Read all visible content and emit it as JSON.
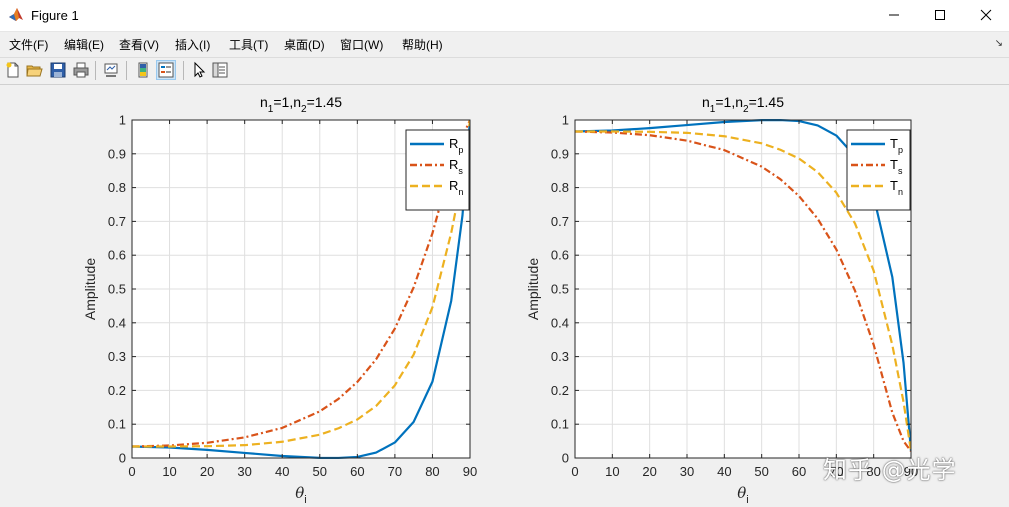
{
  "window": {
    "title": "Figure 1",
    "icon": "matlab-icon"
  },
  "menu": [
    {
      "label": "文件(F)"
    },
    {
      "label": "编辑(E)"
    },
    {
      "label": "查看(V)"
    },
    {
      "label": "插入(I)"
    },
    {
      "label": "工具(T)"
    },
    {
      "label": "桌面(D)"
    },
    {
      "label": "窗口(W)"
    },
    {
      "label": "帮助(H)"
    }
  ],
  "toolbar": [
    "new-figure-icon",
    "open-file-icon",
    "save-icon",
    "print-icon",
    "link-plot-icon",
    "colorbar-icon",
    "legend-icon",
    "pointer-icon",
    "property-editor-icon"
  ],
  "watermark": "知乎 @光学",
  "colors": {
    "series1": "#0072BD",
    "series2": "#D95319",
    "series3": "#EDB120"
  },
  "chart_data": [
    {
      "type": "line",
      "title_main": "n",
      "title_sub1": "1",
      "title_mid": "=1,n",
      "title_sub2": "2",
      "title_tail": "=1.45",
      "xlabel": "θ",
      "xlabel_sub": "i",
      "ylabel": "Amplitude",
      "xlim": [
        0,
        90
      ],
      "ylim": [
        0,
        1
      ],
      "xticks": [
        "0",
        "10",
        "20",
        "30",
        "40",
        "50",
        "60",
        "70",
        "80",
        "90"
      ],
      "yticks": [
        "0",
        "0.1",
        "0.2",
        "0.3",
        "0.4",
        "0.5",
        "0.6",
        "0.7",
        "0.8",
        "0.9",
        "1"
      ],
      "grid": true,
      "legend_position": "top-right",
      "x": [
        0,
        10,
        20,
        30,
        40,
        50,
        55,
        60,
        65,
        70,
        75,
        80,
        85,
        88,
        90
      ],
      "series": [
        {
          "name": "R",
          "sub": "p",
          "style": "solid",
          "color": "#0072BD",
          "values": [
            0.034,
            0.031,
            0.024,
            0.015,
            0.006,
            0.0003,
            0.0002,
            0.003,
            0.016,
            0.046,
            0.107,
            0.226,
            0.465,
            0.718,
            1.0
          ]
        },
        {
          "name": "R",
          "sub": "s",
          "style": "dashdot",
          "color": "#D95319",
          "values": [
            0.034,
            0.037,
            0.045,
            0.061,
            0.089,
            0.138,
            0.175,
            0.225,
            0.292,
            0.383,
            0.505,
            0.665,
            0.866,
            0.95,
            1.0
          ]
        },
        {
          "name": "R",
          "sub": "n",
          "style": "dashed",
          "color": "#EDB120",
          "values": [
            0.034,
            0.034,
            0.035,
            0.038,
            0.048,
            0.069,
            0.088,
            0.114,
            0.154,
            0.215,
            0.306,
            0.446,
            0.666,
            0.834,
            1.0
          ]
        }
      ]
    },
    {
      "type": "line",
      "title_main": "n",
      "title_sub1": "1",
      "title_mid": "=1,n",
      "title_sub2": "2",
      "title_tail": "=1.45",
      "xlabel": "θ",
      "xlabel_sub": "i",
      "ylabel": "Amplitude",
      "xlim": [
        0,
        90
      ],
      "ylim": [
        0,
        1
      ],
      "xticks": [
        "0",
        "10",
        "20",
        "30",
        "40",
        "50",
        "60",
        "70",
        "80",
        "90"
      ],
      "yticks": [
        "0",
        "0.1",
        "0.2",
        "0.3",
        "0.4",
        "0.5",
        "0.6",
        "0.7",
        "0.8",
        "0.9",
        "1"
      ],
      "grid": true,
      "legend_position": "top-right",
      "x": [
        0,
        10,
        20,
        30,
        40,
        50,
        55,
        60,
        65,
        70,
        75,
        80,
        85,
        88,
        90
      ],
      "series": [
        {
          "name": "T",
          "sub": "p",
          "style": "solid",
          "color": "#0072BD",
          "values": [
            0.966,
            0.969,
            0.976,
            0.985,
            0.994,
            0.9997,
            0.9998,
            0.997,
            0.984,
            0.954,
            0.893,
            0.774,
            0.535,
            0.282,
            0.02
          ]
        },
        {
          "name": "T",
          "sub": "s",
          "style": "dashdot",
          "color": "#D95319",
          "values": [
            0.966,
            0.963,
            0.955,
            0.939,
            0.911,
            0.862,
            0.825,
            0.775,
            0.708,
            0.617,
            0.495,
            0.335,
            0.134,
            0.05,
            0.02
          ]
        },
        {
          "name": "T",
          "sub": "n",
          "style": "dashed",
          "color": "#EDB120",
          "values": [
            0.966,
            0.966,
            0.965,
            0.962,
            0.952,
            0.931,
            0.912,
            0.886,
            0.846,
            0.785,
            0.694,
            0.554,
            0.334,
            0.166,
            0.02
          ]
        }
      ]
    }
  ]
}
